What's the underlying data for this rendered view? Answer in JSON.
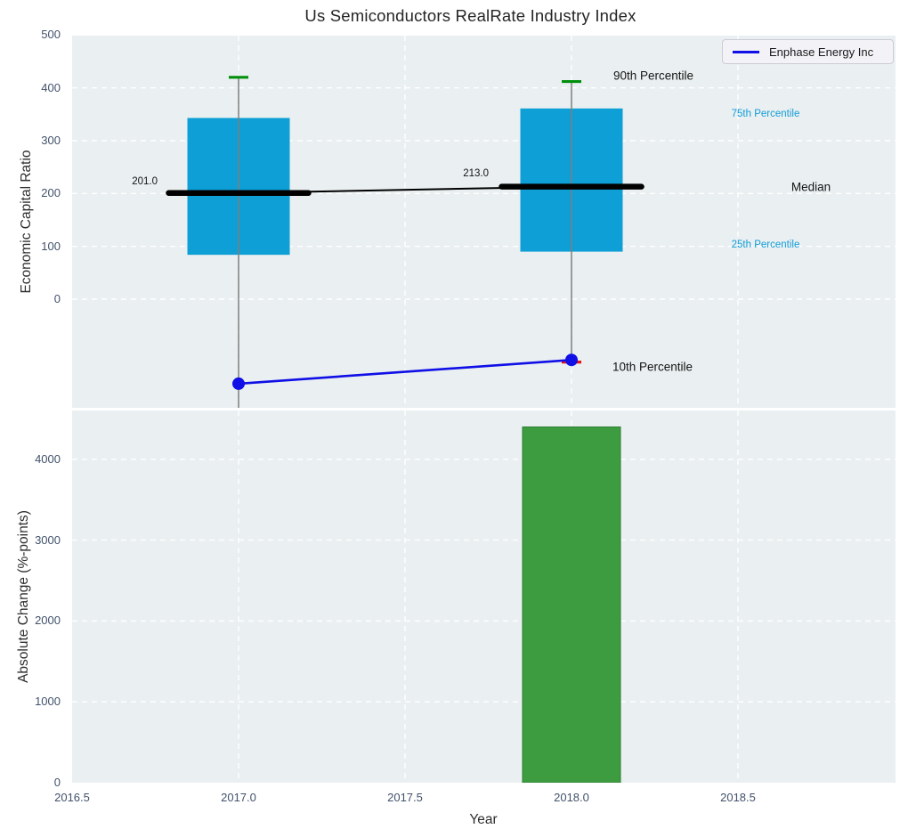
{
  "title": "Us Semiconductors RealRate Industry Index",
  "legend": {
    "label": "Enphase Energy Inc"
  },
  "colors": {
    "axes_background": "#eaeff1",
    "gridline": "#ffffff",
    "box_fill": "#0d9fd6",
    "bar_fill": "#3d9c40",
    "bar_edge": "#2e7d32",
    "cap_90th": "#008f0b",
    "cap_10th": "#ee1111",
    "company_line": "#0f0fe6",
    "median_line": "#000000",
    "whisker": "#7f7f7f",
    "cyan_text": "#119dd8",
    "tick_text": "#42526b"
  },
  "x_axis": {
    "label": "Year",
    "tick_labels": [
      "2016.5",
      "2017.0",
      "2017.5",
      "2018.0",
      "2018.5"
    ]
  },
  "chart_data": [
    {
      "type": "box-timeseries",
      "title": "Us Semiconductors RealRate Industry Index",
      "ylabel": "Economic Capital Ratio",
      "xlabel": "Year",
      "x": [
        2017,
        2018
      ],
      "xlim": [
        2016.5,
        2018.97
      ],
      "ylim": [
        -206,
        499
      ],
      "yticks": [
        0,
        100,
        200,
        300,
        400,
        500
      ],
      "grid": true,
      "legend_position": "upper right",
      "series": {
        "p90": [
          420,
          412
        ],
        "p75": [
          343,
          361
        ],
        "median": [
          201,
          213
        ],
        "p25": [
          84,
          90
        ],
        "p10": [
          null,
          -119
        ],
        "company": {
          "name": "Enphase Energy Inc",
          "values": [
            -160,
            -115
          ]
        }
      },
      "median_labels": [
        "201.0",
        "213.0"
      ],
      "annotations": [
        "90th Percentile",
        "75th Percentile",
        "Median",
        "25th Percentile",
        "10th Percentile"
      ]
    },
    {
      "type": "bar",
      "ylabel": "Absolute Change (%-points)",
      "xlabel": "Year",
      "categories": [
        2018
      ],
      "values": [
        4400
      ],
      "ylim": [
        0,
        4600
      ],
      "yticks": [
        0,
        1000,
        2000,
        3000,
        4000
      ],
      "grid": true
    }
  ]
}
